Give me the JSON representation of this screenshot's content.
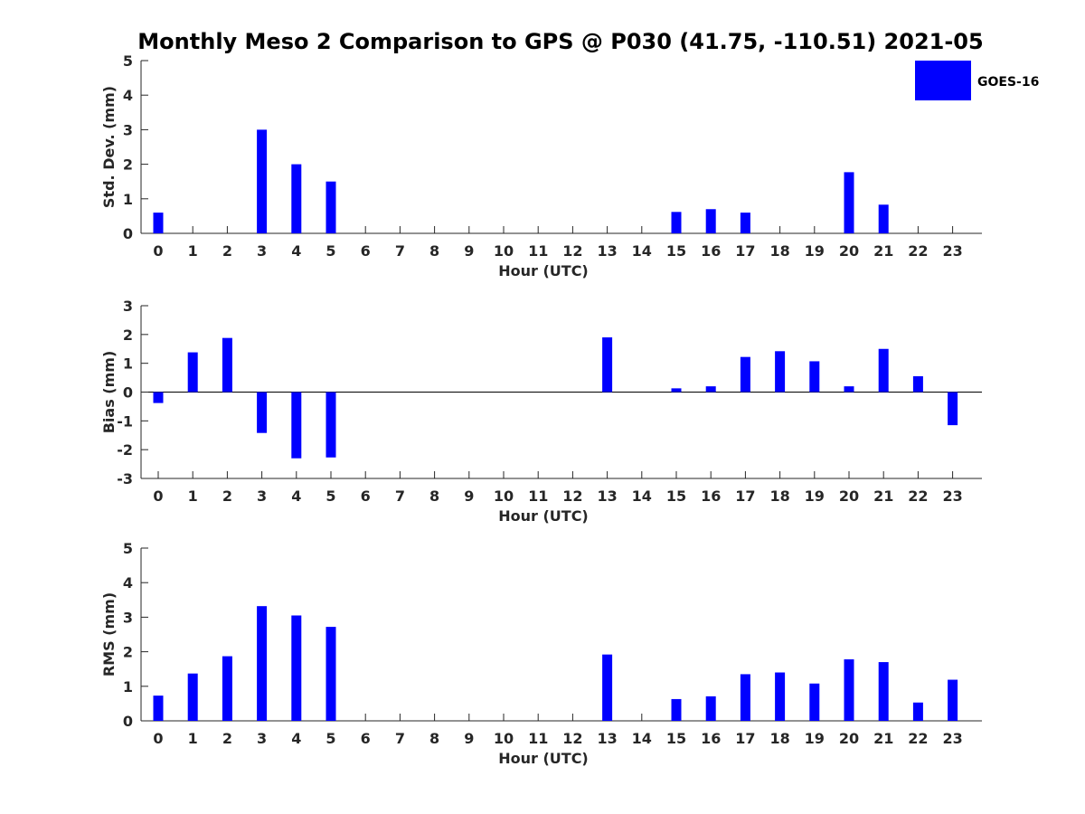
{
  "title": "Monthly Meso 2 Comparison to GPS @ P030 (41.75, -110.51) 2021-05",
  "colors": {
    "bar": "#0000ff",
    "axis": "#262626",
    "background": "#ffffff"
  },
  "legend": {
    "label": "GOES-16",
    "position": "top-right"
  },
  "chart_data": [
    {
      "type": "bar",
      "xlabel": "Hour (UTC)",
      "ylabel": "Std. Dev. (mm)",
      "ylim": [
        0,
        5
      ],
      "yticks": [
        0,
        1,
        2,
        3,
        4,
        5
      ],
      "categories": [
        0,
        1,
        2,
        3,
        4,
        5,
        6,
        7,
        8,
        9,
        10,
        11,
        12,
        13,
        14,
        15,
        16,
        17,
        18,
        19,
        20,
        21,
        22,
        23
      ],
      "series": [
        {
          "name": "GOES-16",
          "values": [
            0.6,
            null,
            null,
            3.0,
            2.0,
            1.5,
            null,
            null,
            null,
            null,
            null,
            null,
            null,
            null,
            null,
            0.62,
            0.7,
            0.6,
            null,
            null,
            1.77,
            0.83,
            null,
            null
          ]
        }
      ]
    },
    {
      "type": "bar",
      "xlabel": "Hour (UTC)",
      "ylabel": "Bias (mm)",
      "ylim": [
        -3,
        3
      ],
      "yticks": [
        -3,
        -2,
        -1,
        0,
        1,
        2,
        3
      ],
      "categories": [
        0,
        1,
        2,
        3,
        4,
        5,
        6,
        7,
        8,
        9,
        10,
        11,
        12,
        13,
        14,
        15,
        16,
        17,
        18,
        19,
        20,
        21,
        22,
        23
      ],
      "series": [
        {
          "name": "GOES-16",
          "values": [
            -0.38,
            1.38,
            1.88,
            -1.42,
            -2.3,
            -2.27,
            null,
            null,
            null,
            null,
            null,
            null,
            null,
            1.9,
            null,
            0.13,
            0.2,
            1.22,
            1.42,
            1.07,
            0.2,
            1.5,
            0.55,
            -1.15
          ]
        }
      ]
    },
    {
      "type": "bar",
      "xlabel": "Hour (UTC)",
      "ylabel": "RMS (mm)",
      "ylim": [
        0,
        5
      ],
      "yticks": [
        0,
        1,
        2,
        3,
        4,
        5
      ],
      "categories": [
        0,
        1,
        2,
        3,
        4,
        5,
        6,
        7,
        8,
        9,
        10,
        11,
        12,
        13,
        14,
        15,
        16,
        17,
        18,
        19,
        20,
        21,
        22,
        23
      ],
      "series": [
        {
          "name": "GOES-16",
          "values": [
            0.73,
            1.37,
            1.87,
            3.32,
            3.05,
            2.72,
            null,
            null,
            null,
            null,
            null,
            null,
            null,
            1.92,
            null,
            0.63,
            0.71,
            1.35,
            1.4,
            1.08,
            1.78,
            1.7,
            0.53,
            1.19
          ]
        }
      ]
    }
  ]
}
